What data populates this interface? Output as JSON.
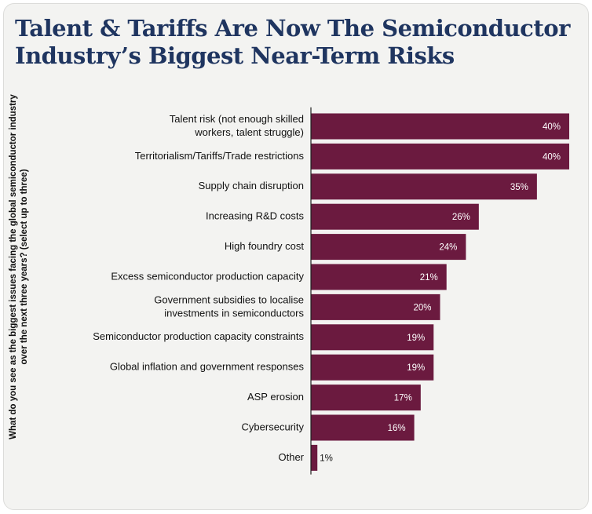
{
  "chart_data": {
    "type": "bar",
    "orientation": "horizontal",
    "title": "Talent & Tariffs Are Now The Semiconductor Industry’s Biggest Near-Term Risks",
    "ylabel": "What do you see as the biggest issues facing the global semiconductor industry over the next three years? (select up to three)",
    "xlabel": "",
    "xlim": [
      0,
      40
    ],
    "value_suffix": "%",
    "bar_color": "#6b1a3f",
    "categories": [
      [
        "Talent risk (not enough skilled",
        "workers, talent struggle)"
      ],
      [
        "Territorialism/Tariffs/Trade restrictions"
      ],
      [
        "Supply chain disruption"
      ],
      [
        "Increasing R&D costs"
      ],
      [
        "High foundry cost"
      ],
      [
        "Excess semiconductor production capacity"
      ],
      [
        "Government subsidies to localise",
        "investments in semiconductors"
      ],
      [
        "Semiconductor production capacity constraints"
      ],
      [
        "Global inflation and government responses"
      ],
      [
        "ASP erosion"
      ],
      [
        "Cybersecurity"
      ],
      [
        "Other"
      ]
    ],
    "values": [
      40,
      40,
      35,
      26,
      24,
      21,
      20,
      19,
      19,
      17,
      16,
      1
    ]
  },
  "colors": {
    "title": "#1f3560",
    "card_bg": "#f3f3f1",
    "axis": "#222222",
    "label_inside": "#ffffff",
    "label_outside": "#111111"
  }
}
